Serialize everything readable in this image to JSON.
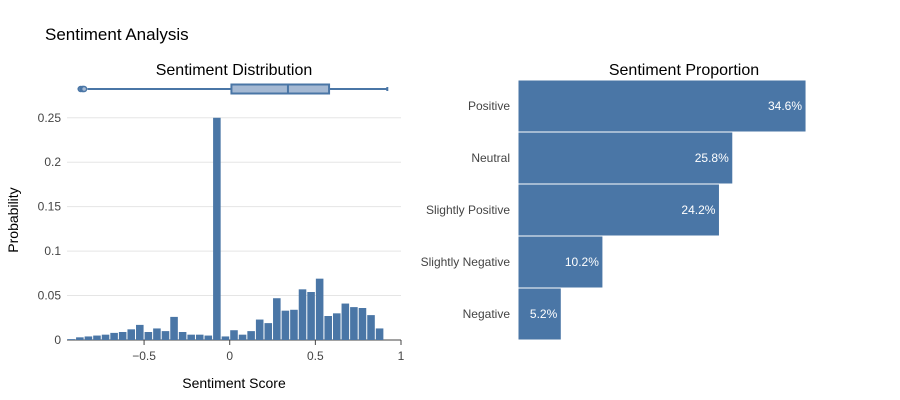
{
  "page": {
    "title": "Sentiment Analysis",
    "colors": {
      "bar": "#4a76a6",
      "box_fill": "#a5b9d3",
      "grid": "#e5e5e5",
      "text": "#2a3f5f",
      "tick": "#444444"
    }
  },
  "chart_data": [
    {
      "type": "histogram",
      "title": "Sentiment Distribution",
      "xlabel": "Sentiment Score",
      "ylabel": "Probability",
      "xlim": [
        -0.95,
        1.0
      ],
      "ylim": [
        0,
        0.27
      ],
      "x_ticks": [
        -0.5,
        0,
        0.5,
        1
      ],
      "x_tick_labels": [
        "−0.5",
        "0",
        "0.5",
        "1"
      ],
      "y_ticks": [
        0,
        0.05,
        0.1,
        0.15,
        0.2,
        0.25
      ],
      "y_tick_labels": [
        "0",
        "0.05",
        "0.1",
        "0.15",
        "0.2",
        "0.25"
      ],
      "grid": true,
      "bin_start": -0.95,
      "bin_width": 0.05,
      "values": [
        0.001,
        0.003,
        0.004,
        0.005,
        0.006,
        0.008,
        0.009,
        0.012,
        0.017,
        0.009,
        0.013,
        0.01,
        0.026,
        0.009,
        0.006,
        0.006,
        0.005,
        0.25,
        0.004,
        0.011,
        0.006,
        0.01,
        0.023,
        0.019,
        0.047,
        0.033,
        0.034,
        0.057,
        0.054,
        0.069,
        0.027,
        0.03,
        0.041,
        0.037,
        0.036,
        0.028,
        0.013
      ],
      "box": {
        "min": -0.83,
        "q1": 0.01,
        "median": 0.34,
        "q3": 0.58,
        "max": 0.92,
        "outliers": [
          -0.87,
          -0.86,
          -0.855,
          -0.85
        ]
      }
    },
    {
      "type": "bar",
      "orientation": "horizontal",
      "title": "Sentiment Proportion",
      "categories": [
        "Positive",
        "Neutral",
        "Slightly Positive",
        "Slightly Negative",
        "Negative"
      ],
      "values": [
        34.6,
        25.8,
        24.2,
        10.2,
        5.2
      ],
      "labels": [
        "34.6%",
        "25.8%",
        "24.2%",
        "10.2%",
        "5.2%"
      ],
      "xlim": [
        0,
        40
      ]
    }
  ]
}
